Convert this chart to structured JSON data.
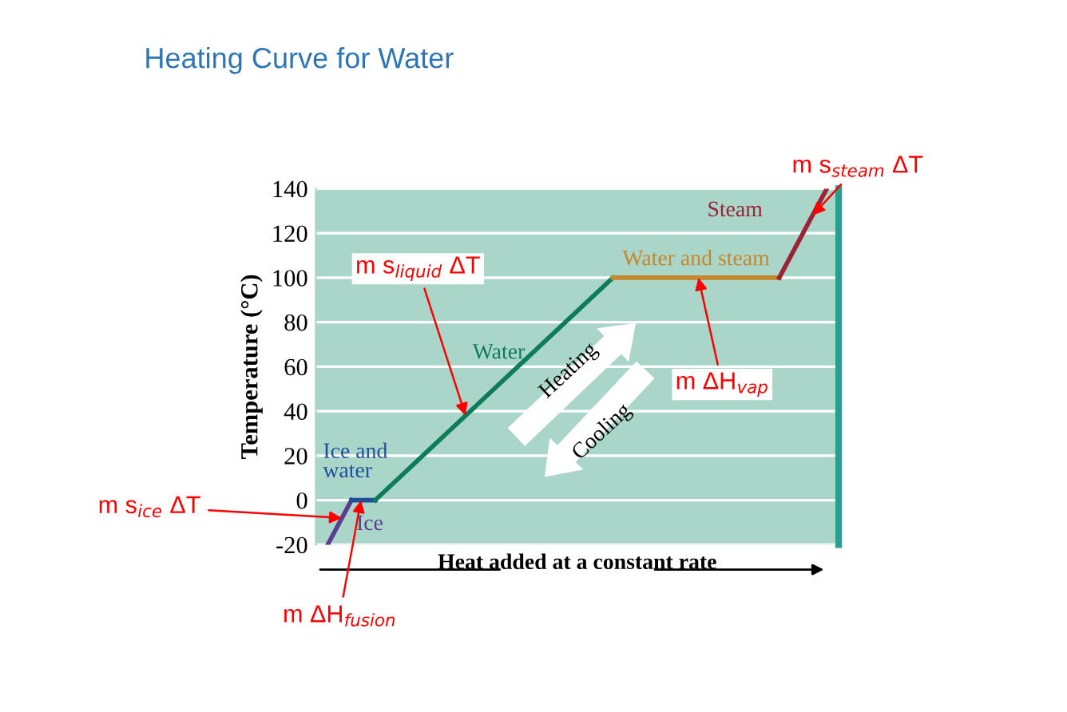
{
  "chart_data": {
    "type": "line",
    "title": "Heating Curve for Water",
    "ylabel": "Temperature (°C)",
    "xlabel": "Heat added at a constant rate",
    "categories": [
      null,
      null,
      null,
      null,
      null,
      null,
      null,
      null,
      null,
      null,
      null,
      null,
      null,
      null,
      null,
      null,
      null,
      null,
      null,
      null,
      null,
      null
    ],
    "series": [
      {
        "name": "Ice",
        "color": "#5b3f8f",
        "values": [
          -20,
          0,
          null,
          null,
          null,
          null,
          null,
          null,
          null,
          null,
          null,
          null,
          null,
          null,
          null,
          null,
          null,
          null,
          null,
          null,
          null,
          null
        ]
      },
      {
        "name": "Ice and water",
        "color": "#1f4e9a",
        "values": [
          null,
          0,
          0,
          null,
          null,
          null,
          null,
          null,
          null,
          null,
          null,
          null,
          null,
          null,
          null,
          null,
          null,
          null,
          null,
          null,
          null,
          null
        ]
      },
      {
        "name": "Water",
        "color": "#0e7c5a",
        "values": [
          null,
          null,
          0,
          10,
          20,
          30,
          40,
          50,
          60,
          70,
          80,
          90,
          100,
          null,
          null,
          null,
          null,
          null,
          null,
          null,
          null,
          null
        ]
      },
      {
        "name": "Water and steam",
        "color": "#c8862a",
        "values": [
          null,
          null,
          null,
          null,
          null,
          null,
          null,
          null,
          null,
          null,
          null,
          null,
          100,
          100,
          100,
          100,
          100,
          100,
          100,
          100,
          null,
          null
        ]
      },
      {
        "name": "Steam",
        "color": "#9b2335",
        "values": [
          null,
          null,
          null,
          null,
          null,
          null,
          null,
          null,
          null,
          null,
          null,
          null,
          null,
          null,
          null,
          null,
          null,
          null,
          null,
          100,
          120,
          140
        ]
      }
    ],
    "ylim": [
      -20,
      140
    ],
    "yticks": [
      -20,
      0,
      20,
      40,
      60,
      80,
      100,
      120,
      140
    ],
    "grid": "y",
    "legend": false,
    "tick_labels": "y",
    "marker": "none",
    "line_style": "solid",
    "annotations": [
      "Heating",
      "Cooling",
      "m s$_{steam}$ ΔT",
      "m s$_{liquid}$ ΔT",
      "m ΔH$_{vap}$",
      "m s$_{ice}$ ΔT",
      "m ΔH$_{fusion}$"
    ]
  }
}
